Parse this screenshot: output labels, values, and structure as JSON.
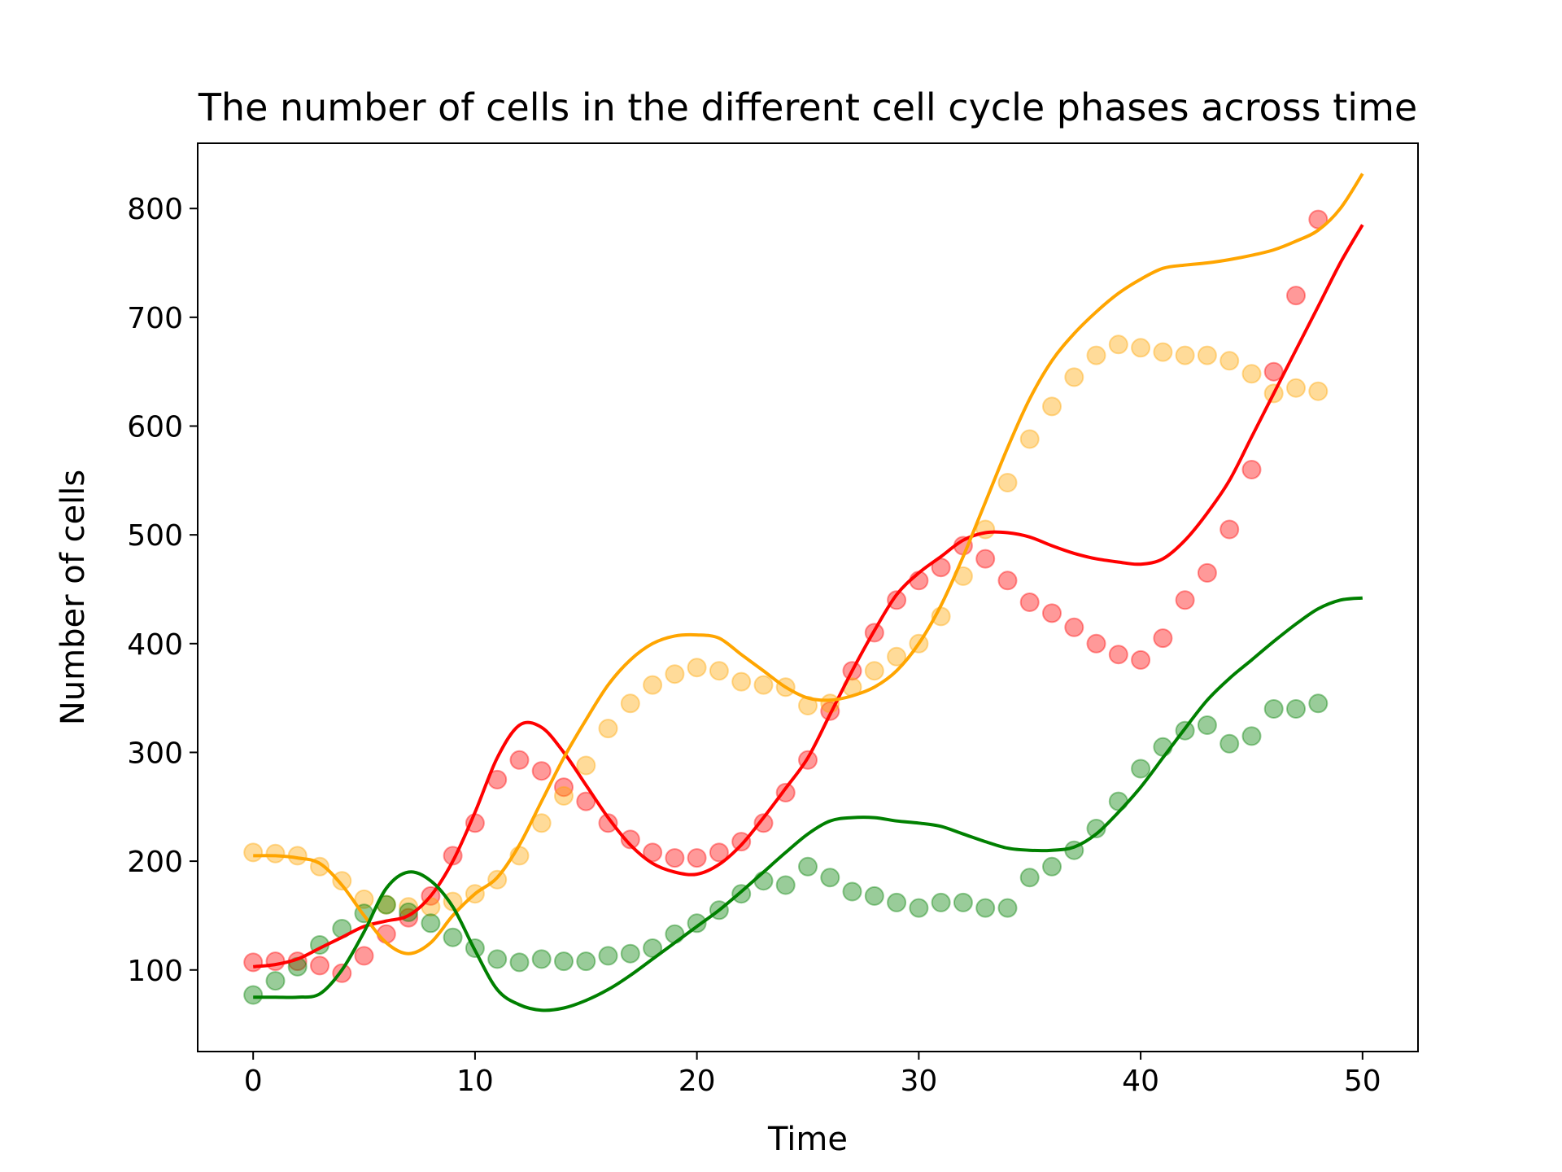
{
  "chart_data": {
    "type": "scatter",
    "title": "The number of cells in the different cell cycle phases across time",
    "xlabel": "Time",
    "ylabel": "Number of cells",
    "xlim": [
      -2.5,
      52.5
    ],
    "ylim": [
      25,
      860
    ],
    "xticks": [
      0,
      10,
      20,
      30,
      40,
      50
    ],
    "yticks": [
      100,
      200,
      300,
      400,
      500,
      600,
      700,
      800
    ],
    "grid": false,
    "legend": "none",
    "series": [
      {
        "color": "#ff0000",
        "kind": "points",
        "opacity": 0.4,
        "x": [
          0,
          1,
          2,
          3,
          4,
          5,
          6,
          7,
          8,
          9,
          10,
          11,
          12,
          13,
          14,
          15,
          16,
          17,
          18,
          19,
          20,
          21,
          22,
          23,
          24,
          25,
          26,
          27,
          28,
          29,
          30,
          31,
          32,
          33,
          34,
          35,
          36,
          37,
          38,
          39,
          40,
          41,
          42,
          43,
          44,
          45,
          46,
          47,
          48
        ],
        "y": [
          107,
          108,
          108,
          104,
          97,
          113,
          133,
          148,
          168,
          205,
          235,
          275,
          293,
          283,
          268,
          255,
          235,
          220,
          208,
          203,
          203,
          208,
          218,
          235,
          263,
          293,
          338,
          375,
          410,
          440,
          458,
          470,
          490,
          478,
          458,
          438,
          428,
          415,
          400,
          390,
          385,
          405,
          440,
          465,
          505,
          560,
          650,
          720,
          790
        ]
      },
      {
        "color": "#ffa500",
        "kind": "points",
        "opacity": 0.4,
        "x": [
          0,
          1,
          2,
          3,
          4,
          5,
          6,
          7,
          8,
          9,
          10,
          11,
          12,
          13,
          14,
          15,
          16,
          17,
          18,
          19,
          20,
          21,
          22,
          23,
          24,
          25,
          26,
          27,
          28,
          29,
          30,
          31,
          32,
          33,
          34,
          35,
          36,
          37,
          38,
          39,
          40,
          41,
          42,
          43,
          44,
          45,
          46,
          47,
          48
        ],
        "y": [
          208,
          207,
          205,
          195,
          182,
          165,
          160,
          158,
          158,
          163,
          170,
          183,
          205,
          235,
          260,
          288,
          322,
          345,
          362,
          372,
          378,
          375,
          365,
          362,
          360,
          343,
          345,
          360,
          375,
          388,
          400,
          425,
          462,
          505,
          548,
          588,
          618,
          645,
          665,
          675,
          672,
          668,
          665,
          665,
          660,
          648,
          630,
          635,
          632
        ]
      },
      {
        "color": "#008000",
        "kind": "points",
        "opacity": 0.4,
        "x": [
          0,
          1,
          2,
          3,
          4,
          5,
          6,
          7,
          8,
          9,
          10,
          11,
          12,
          13,
          14,
          15,
          16,
          17,
          18,
          19,
          20,
          21,
          22,
          23,
          24,
          25,
          26,
          27,
          28,
          29,
          30,
          31,
          32,
          33,
          34,
          35,
          36,
          37,
          38,
          39,
          40,
          41,
          42,
          43,
          44,
          45,
          46,
          47,
          48
        ],
        "y": [
          77,
          90,
          103,
          123,
          138,
          152,
          160,
          153,
          143,
          130,
          120,
          110,
          107,
          110,
          108,
          108,
          113,
          115,
          120,
          133,
          143,
          155,
          170,
          182,
          178,
          195,
          185,
          172,
          168,
          162,
          157,
          162,
          162,
          157,
          157,
          185,
          195,
          210,
          230,
          255,
          285,
          305,
          320,
          325,
          308,
          315,
          340,
          340,
          345
        ]
      },
      {
        "color": "#ff0000",
        "kind": "line",
        "x": [
          0,
          1,
          2,
          3,
          4,
          5,
          6,
          7,
          8,
          9,
          10,
          11,
          12,
          13,
          14,
          15,
          16,
          17,
          18,
          19,
          20,
          21,
          22,
          23,
          24,
          25,
          26,
          27,
          28,
          29,
          30,
          31,
          32,
          33,
          34,
          35,
          36,
          37,
          38,
          39,
          40,
          41,
          42,
          43,
          44,
          45,
          46,
          47,
          48,
          49,
          50
        ],
        "y": [
          103,
          105,
          110,
          120,
          130,
          140,
          145,
          150,
          168,
          200,
          245,
          295,
          325,
          323,
          300,
          270,
          240,
          215,
          198,
          190,
          188,
          197,
          215,
          240,
          267,
          295,
          335,
          375,
          412,
          445,
          465,
          480,
          495,
          502,
          502,
          498,
          490,
          483,
          478,
          475,
          473,
          478,
          495,
          520,
          550,
          590,
          630,
          670,
          710,
          750,
          785
        ]
      },
      {
        "color": "#ffa500",
        "kind": "line",
        "x": [
          0,
          1,
          2,
          3,
          4,
          5,
          6,
          7,
          8,
          9,
          10,
          11,
          12,
          13,
          14,
          15,
          16,
          17,
          18,
          19,
          20,
          21,
          22,
          23,
          24,
          25,
          26,
          27,
          28,
          29,
          30,
          31,
          32,
          33,
          34,
          35,
          36,
          37,
          38,
          39,
          40,
          41,
          42,
          43,
          44,
          45,
          46,
          47,
          48,
          49,
          50
        ],
        "y": [
          205,
          205,
          203,
          198,
          178,
          150,
          125,
          115,
          125,
          150,
          170,
          185,
          215,
          255,
          295,
          330,
          362,
          385,
          400,
          407,
          408,
          405,
          390,
          375,
          360,
          350,
          348,
          352,
          360,
          375,
          400,
          435,
          480,
          530,
          580,
          625,
          660,
          685,
          705,
          722,
          735,
          745,
          748,
          750,
          753,
          757,
          762,
          770,
          780,
          800,
          832
        ]
      },
      {
        "color": "#008000",
        "kind": "line",
        "x": [
          0,
          1,
          2,
          3,
          4,
          5,
          6,
          7,
          8,
          9,
          10,
          11,
          12,
          13,
          14,
          15,
          16,
          17,
          18,
          19,
          20,
          21,
          22,
          23,
          24,
          25,
          26,
          27,
          28,
          29,
          30,
          31,
          32,
          33,
          34,
          35,
          36,
          37,
          38,
          39,
          40,
          41,
          42,
          43,
          44,
          45,
          46,
          47,
          48,
          49,
          50
        ],
        "y": [
          75,
          75,
          75,
          78,
          100,
          135,
          175,
          190,
          182,
          158,
          118,
          82,
          68,
          63,
          65,
          72,
          82,
          95,
          110,
          125,
          140,
          155,
          172,
          190,
          208,
          225,
          237,
          240,
          240,
          237,
          235,
          232,
          225,
          218,
          212,
          210,
          210,
          213,
          225,
          245,
          268,
          295,
          322,
          348,
          368,
          385,
          402,
          418,
          432,
          440,
          442
        ]
      }
    ]
  }
}
